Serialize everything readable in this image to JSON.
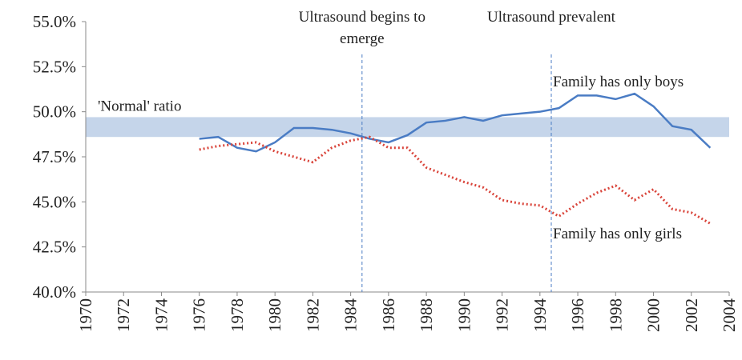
{
  "chart_data": {
    "type": "line",
    "x": [
      1976,
      1977,
      1978,
      1979,
      1980,
      1981,
      1982,
      1983,
      1984,
      1985,
      1986,
      1987,
      1988,
      1989,
      1990,
      1991,
      1992,
      1993,
      1994,
      1995,
      1996,
      1997,
      1998,
      1999,
      2000,
      2001,
      2002,
      2003
    ],
    "series": [
      {
        "name": "Family has only boys",
        "color": "#4a7cc4",
        "style": "solid",
        "values": [
          48.5,
          48.6,
          48.0,
          47.8,
          48.3,
          49.1,
          49.1,
          49.0,
          48.8,
          48.5,
          48.3,
          48.7,
          49.4,
          49.5,
          49.7,
          49.5,
          49.8,
          49.9,
          50.0,
          50.2,
          50.9,
          50.9,
          50.7,
          51.0,
          50.3,
          49.2,
          49.0,
          48.0
        ]
      },
      {
        "name": "Family has only girls",
        "color": "#d9443a",
        "style": "dotted",
        "values": [
          47.9,
          48.1,
          48.2,
          48.3,
          47.8,
          47.5,
          47.2,
          48.0,
          48.4,
          48.6,
          48.0,
          48.0,
          46.9,
          46.5,
          46.1,
          45.8,
          45.1,
          44.9,
          44.8,
          44.2,
          44.9,
          45.5,
          45.9,
          45.1,
          45.7,
          44.6,
          44.4,
          43.8
        ]
      }
    ],
    "normal_band": {
      "label": "'Normal' ratio",
      "range": [
        48.6,
        49.7
      ],
      "color": "#c5d5ea"
    },
    "events": [
      {
        "x": 1984.6,
        "label": [
          "Ultrasound begins to",
          "emerge"
        ]
      },
      {
        "x": 1994.6,
        "label": [
          "Ultrasound prevalent"
        ]
      }
    ],
    "xlim": [
      1970,
      2004
    ],
    "xticks": [
      1970,
      1972,
      1974,
      1976,
      1978,
      1980,
      1982,
      1984,
      1986,
      1988,
      1990,
      1992,
      1994,
      1996,
      1998,
      2000,
      2002,
      2004
    ],
    "ylim": [
      40,
      55
    ],
    "yticks": [
      {
        "value": 40,
        "label": "40.0%"
      },
      {
        "value": 42.5,
        "label": "42.5%"
      },
      {
        "value": 45,
        "label": "45.0%"
      },
      {
        "value": 47.5,
        "label": "47.5%"
      },
      {
        "value": 50,
        "label": "50.0%"
      },
      {
        "value": 52.5,
        "label": "52.5%"
      },
      {
        "value": 55,
        "label": "55.0%"
      }
    ]
  }
}
